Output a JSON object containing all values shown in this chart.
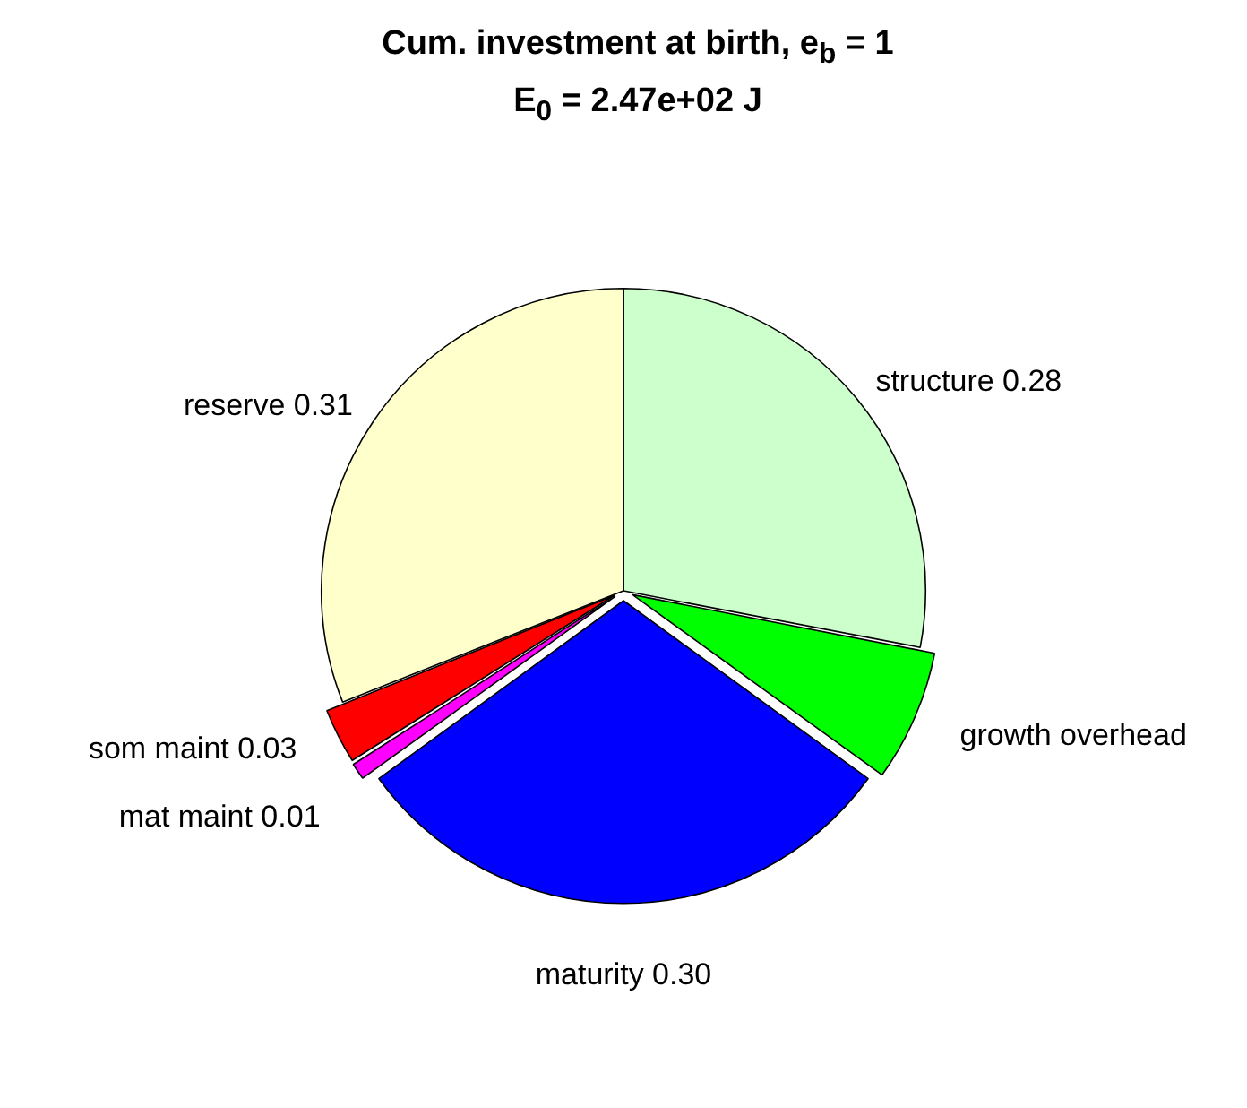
{
  "chart_data": {
    "type": "pie",
    "title": "Cum. investment at birth, e$_{b}$ = 1",
    "subtitle": "E$_{0}$ = 2.47e+02 J",
    "categories": [
      "structure",
      "growth overhead",
      "maturity",
      "mat maint",
      "som maint",
      "reserve"
    ],
    "values": [
      0.28,
      0.07,
      0.3,
      0.01,
      0.03,
      0.31
    ],
    "value_labels": [
      "0.28",
      null,
      "0.30",
      "0.01",
      "0.03",
      "0.31"
    ],
    "colors": [
      "#ccffcc",
      "#00ff00",
      "#0000ff",
      "#ff00ff",
      "#ff0000",
      "#ffffcc"
    ],
    "legend": false
  }
}
